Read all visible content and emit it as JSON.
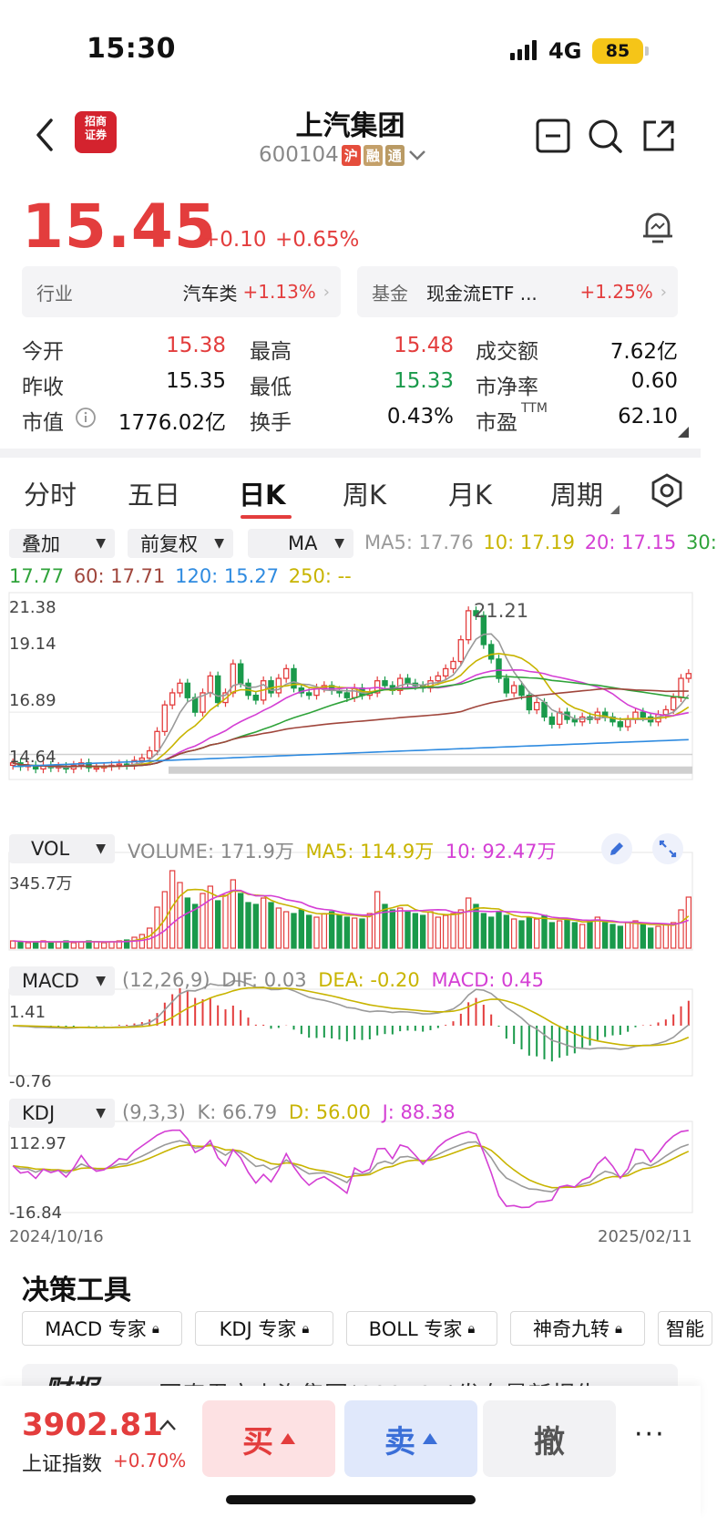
{
  "status_bar": {
    "time": "15:30",
    "network": "4G",
    "battery": "85"
  },
  "header": {
    "stock_name": "上汽集团",
    "stock_code": "600104",
    "tags": [
      "沪",
      "融",
      "通"
    ]
  },
  "quote": {
    "price": "15.45",
    "change_abs": "+0.10",
    "change_pct": "+0.65%"
  },
  "industry": {
    "label": "行业",
    "name": "汽车类",
    "pct": "+1.13%"
  },
  "fund": {
    "label": "基金",
    "name": "现金流ETF ...",
    "pct": "+1.25%"
  },
  "stats": {
    "open_label": "今开",
    "open": "15.38",
    "high_label": "最高",
    "high": "15.48",
    "turnover_label": "成交额",
    "turnover": "7.62亿",
    "prev_label": "昨收",
    "prev": "15.35",
    "low_label": "最低",
    "low": "15.33",
    "pb_label": "市净率",
    "pb": "0.60",
    "mcap_label": "市值",
    "mcap": "1776.02亿",
    "turnrate_label": "换手",
    "turnrate": "0.43%",
    "pe_label": "市盈",
    "pe_sup": "TTM",
    "pe": "62.10"
  },
  "period_tabs": [
    "分时",
    "五日",
    "日K",
    "周K",
    "月K",
    "周期"
  ],
  "dropdowns": {
    "overlay": "叠加",
    "adjust": "前复权",
    "indicator": "MA"
  },
  "ma": {
    "ma5": "MA5: 17.76",
    "ma10": "10: 17.19",
    "ma20": "20: 17.15",
    "ma30_label": "30:",
    "ma30_val": "17.77",
    "ma60": "60: 17.71",
    "ma120": "120: 15.27",
    "ma250": "250: --"
  },
  "colors": {
    "up": "#e33d3d",
    "down": "#1a9a4b",
    "ma5": "#9a9a9a",
    "ma10": "#c8b400",
    "ma20": "#d43fd4",
    "ma30": "#2fa33a",
    "ma60": "#a0463c",
    "ma120": "#2f8be0"
  },
  "chart_data": {
    "type": "candlestick",
    "price_axis_labels": [
      "21.38",
      "19.14",
      "16.89",
      "14.64"
    ],
    "max_label": "21.21",
    "date_start": "2024/10/16",
    "date_end": "2025/02/11",
    "vol": {
      "dropdown": "VOL",
      "label": "VOLUME: 171.9万",
      "ma5": "MA5: 114.9万",
      "ma10": "10: 92.47万",
      "axis_top": "345.7万"
    },
    "macd": {
      "dropdown": "MACD",
      "params": "(12,26,9)",
      "dif": "DIF: 0.03",
      "dea": "DEA: -0.20",
      "macd": "MACD: 0.45",
      "axis_top": "1.41",
      "axis_bottom": "-0.76"
    },
    "kdj": {
      "dropdown": "KDJ",
      "params": "(9,3,3)",
      "k": "K: 66.79",
      "d": "D: 56.00",
      "j": "J: 88.38",
      "axis_top": "112.97",
      "axis_bottom": "-16.84"
    },
    "closes": [
      14.7,
      14.55,
      14.6,
      14.45,
      14.6,
      14.5,
      14.55,
      14.45,
      14.6,
      14.7,
      14.5,
      14.5,
      14.55,
      14.6,
      14.65,
      14.6,
      14.8,
      14.9,
      15.2,
      16.0,
      17.1,
      17.6,
      18.0,
      17.4,
      16.8,
      17.6,
      18.3,
      17.2,
      17.6,
      18.8,
      18.0,
      17.5,
      17.3,
      18.1,
      17.6,
      18.2,
      18.6,
      17.8,
      17.6,
      17.5,
      17.8,
      17.9,
      17.7,
      17.6,
      17.4,
      17.8,
      17.5,
      17.6,
      18.1,
      17.9,
      17.7,
      18.2,
      18.0,
      17.9,
      17.8,
      18.1,
      18.3,
      18.6,
      18.9,
      19.8,
      21.0,
      20.8,
      19.6,
      19.0,
      18.2,
      17.6,
      17.9,
      17.5,
      16.9,
      17.2,
      16.6,
      16.3,
      16.8,
      16.5,
      16.4,
      16.6,
      16.5,
      16.8,
      16.6,
      16.4,
      16.2,
      16.5,
      16.8,
      16.6,
      16.4,
      16.7,
      16.9,
      17.4,
      18.2,
      18.4
    ],
    "volumes_pct": [
      8,
      7,
      6,
      7,
      8,
      6,
      7,
      8,
      6,
      7,
      8,
      7,
      6,
      7,
      8,
      9,
      12,
      15,
      22,
      45,
      62,
      85,
      72,
      55,
      48,
      60,
      68,
      52,
      58,
      75,
      60,
      50,
      48,
      55,
      50,
      44,
      40,
      38,
      42,
      36,
      34,
      38,
      40,
      36,
      34,
      33,
      32,
      38,
      62,
      48,
      42,
      44,
      40,
      38,
      36,
      40,
      34,
      36,
      38,
      42,
      55,
      48,
      38,
      34,
      40,
      36,
      32,
      30,
      34,
      32,
      36,
      28,
      30,
      32,
      28,
      26,
      30,
      34,
      28,
      26,
      24,
      28,
      30,
      26,
      22,
      24,
      26,
      28,
      42,
      56
    ]
  },
  "tools": {
    "title": "决策工具",
    "chips": [
      "MACD 专家",
      "KDJ 专家",
      "BOLL 专家",
      "神奇九转",
      "智能"
    ]
  },
  "news": {
    "label": "财报",
    "text": "国泰君安上汽集团(600104)发布最新报告"
  },
  "bottom": {
    "index_value": "3902.81",
    "index_name": "上证指数",
    "index_pct": "+0.70%",
    "buy": "买",
    "sell": "卖",
    "cancel": "撤",
    "more": "···"
  }
}
